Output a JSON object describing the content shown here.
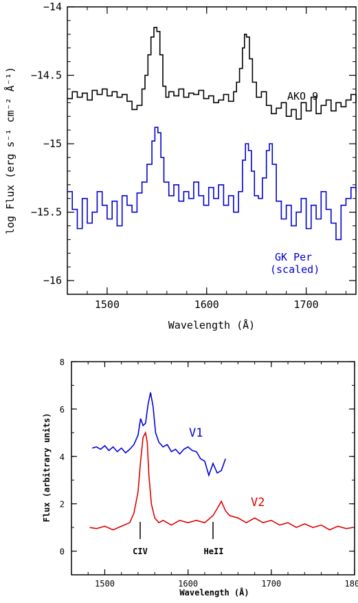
{
  "chart_data": [
    {
      "type": "line",
      "xlabel": "Wavelength (Å)",
      "ylabel": "log Flux (erg s⁻¹ cm⁻² Å⁻¹)",
      "xlim": [
        1460,
        1750
      ],
      "ylim": [
        -16.1,
        -14
      ],
      "xticks": [
        1500,
        1600,
        1700
      ],
      "yticks": [
        -14,
        -14.5,
        -15,
        -15.5,
        -16
      ],
      "tick_labels_x": [
        "1500",
        "1600",
        "1700"
      ],
      "tick_labels_y": [
        "−14",
        "−14.5",
        "−15",
        "−15.5",
        "−16"
      ],
      "grid": false,
      "series": [
        {
          "name": "AKO 9",
          "color": "#000000",
          "x": [
            1460,
            1465,
            1470,
            1475,
            1480,
            1485,
            1490,
            1495,
            1500,
            1505,
            1510,
            1515,
            1520,
            1525,
            1530,
            1535,
            1538,
            1541,
            1544,
            1547,
            1550,
            1553,
            1556,
            1559,
            1562,
            1567,
            1572,
            1577,
            1582,
            1587,
            1592,
            1597,
            1602,
            1607,
            1612,
            1617,
            1622,
            1627,
            1630,
            1633,
            1636,
            1638,
            1640,
            1643,
            1646,
            1650,
            1655,
            1660,
            1665,
            1670,
            1675,
            1680,
            1685,
            1690,
            1695,
            1700,
            1705,
            1710,
            1715,
            1720,
            1725,
            1730,
            1735,
            1740,
            1745,
            1750
          ],
          "values": [
            -14.67,
            -14.62,
            -14.66,
            -14.63,
            -14.68,
            -14.61,
            -14.64,
            -14.6,
            -14.65,
            -14.62,
            -14.66,
            -14.64,
            -14.69,
            -14.75,
            -14.72,
            -14.6,
            -14.5,
            -14.35,
            -14.22,
            -14.15,
            -14.18,
            -14.35,
            -14.58,
            -14.66,
            -14.62,
            -14.65,
            -14.6,
            -14.66,
            -14.63,
            -14.64,
            -14.61,
            -14.67,
            -14.65,
            -14.7,
            -14.68,
            -14.64,
            -14.69,
            -14.62,
            -14.55,
            -14.45,
            -14.3,
            -14.2,
            -14.22,
            -14.38,
            -14.55,
            -14.66,
            -14.62,
            -14.72,
            -14.78,
            -14.74,
            -14.7,
            -14.8,
            -14.75,
            -14.82,
            -14.7,
            -14.76,
            -14.66,
            -14.78,
            -14.72,
            -14.68,
            -14.76,
            -14.7,
            -14.73,
            -14.68,
            -14.64,
            -14.7
          ]
        },
        {
          "name": "GK Per (scaled)",
          "color": "#0000cc",
          "x": [
            1460,
            1465,
            1470,
            1475,
            1480,
            1485,
            1490,
            1495,
            1500,
            1505,
            1510,
            1515,
            1520,
            1525,
            1530,
            1535,
            1540,
            1545,
            1548,
            1551,
            1554,
            1557,
            1562,
            1567,
            1572,
            1577,
            1582,
            1587,
            1592,
            1597,
            1602,
            1607,
            1612,
            1617,
            1622,
            1627,
            1632,
            1636,
            1639,
            1642,
            1645,
            1648,
            1652,
            1656,
            1660,
            1663,
            1666,
            1670,
            1675,
            1680,
            1685,
            1690,
            1695,
            1700,
            1705,
            1710,
            1715,
            1720,
            1725,
            1730,
            1735,
            1740,
            1745,
            1750
          ],
          "values": [
            -15.35,
            -15.48,
            -15.62,
            -15.4,
            -15.58,
            -15.5,
            -15.35,
            -15.45,
            -15.55,
            -15.42,
            -15.6,
            -15.38,
            -15.45,
            -15.5,
            -15.36,
            -15.28,
            -15.15,
            -14.98,
            -14.88,
            -14.92,
            -15.1,
            -15.28,
            -15.38,
            -15.3,
            -15.42,
            -15.35,
            -15.4,
            -15.28,
            -15.38,
            -15.45,
            -15.32,
            -15.4,
            -15.3,
            -15.45,
            -15.38,
            -15.5,
            -15.35,
            -15.12,
            -15.0,
            -15.05,
            -15.2,
            -15.38,
            -15.4,
            -15.25,
            -15.05,
            -15.0,
            -15.15,
            -15.42,
            -15.55,
            -15.45,
            -15.6,
            -15.5,
            -15.4,
            -15.62,
            -15.45,
            -15.55,
            -15.35,
            -15.48,
            -15.58,
            -15.7,
            -15.45,
            -15.4,
            -15.32,
            -15.35
          ]
        }
      ],
      "annotations": [
        {
          "text": "AKO 9",
          "x": 1695,
          "y": -14.55,
          "color": "#000000"
        },
        {
          "text": "GK Per",
          "x": 1690,
          "y": -15.8,
          "color": "#0000cc"
        },
        {
          "text": "(scaled)",
          "x": 1690,
          "y": -15.9,
          "color": "#0000cc"
        }
      ]
    },
    {
      "type": "line",
      "xlabel": "Wavelength (Å)",
      "ylabel": "Flux (arbitrary units)",
      "xlim": [
        1460,
        1800
      ],
      "ylim": [
        -1,
        8
      ],
      "xticks": [
        1500,
        1600,
        1700,
        1800
      ],
      "yticks": [
        0,
        2,
        4,
        6,
        8
      ],
      "tick_labels_x": [
        "1500",
        "1600",
        "1700",
        "1800"
      ],
      "tick_labels_y": [
        "0",
        "2",
        "4",
        "6",
        "8"
      ],
      "grid": false,
      "series": [
        {
          "name": "V1",
          "color": "#0000dd",
          "x": [
            1485,
            1490,
            1495,
            1500,
            1505,
            1510,
            1515,
            1520,
            1525,
            1530,
            1535,
            1540,
            1543,
            1546,
            1549,
            1552,
            1555,
            1558,
            1561,
            1565,
            1570,
            1575,
            1580,
            1585,
            1590,
            1595,
            1600,
            1605,
            1610,
            1615,
            1620,
            1625,
            1630,
            1635,
            1640,
            1645
          ],
          "values": [
            4.35,
            4.4,
            4.3,
            4.45,
            4.25,
            4.4,
            4.2,
            4.35,
            4.15,
            4.3,
            4.5,
            4.9,
            5.6,
            5.3,
            5.4,
            6.2,
            6.7,
            6.1,
            5.0,
            4.6,
            4.4,
            4.5,
            4.2,
            4.3,
            4.1,
            4.3,
            4.4,
            4.25,
            4.2,
            3.9,
            3.8,
            3.2,
            3.7,
            3.3,
            3.4,
            3.9
          ]
        },
        {
          "name": "V2",
          "color": "#dd0000",
          "x": [
            1482,
            1490,
            1500,
            1510,
            1520,
            1530,
            1535,
            1540,
            1543,
            1546,
            1549,
            1551,
            1553,
            1556,
            1560,
            1565,
            1570,
            1580,
            1590,
            1600,
            1610,
            1620,
            1630,
            1635,
            1640,
            1645,
            1650,
            1660,
            1670,
            1680,
            1690,
            1700,
            1710,
            1720,
            1730,
            1740,
            1750,
            1760,
            1770,
            1780,
            1790,
            1798
          ],
          "values": [
            1.0,
            0.95,
            1.05,
            0.9,
            1.05,
            1.2,
            1.6,
            2.5,
            3.8,
            4.8,
            5.0,
            4.6,
            3.2,
            2.0,
            1.4,
            1.2,
            1.3,
            1.1,
            1.3,
            1.2,
            1.3,
            1.2,
            1.5,
            1.8,
            2.1,
            1.7,
            1.5,
            1.4,
            1.2,
            1.4,
            1.2,
            1.3,
            1.1,
            1.2,
            1.0,
            1.15,
            1.0,
            1.1,
            0.9,
            1.05,
            0.95,
            1.0
          ]
        }
      ],
      "annotations": [
        {
          "text": "V1",
          "x": 1608,
          "y": 5.05,
          "color": "#0000dd"
        },
        {
          "text": "V2",
          "x": 1718,
          "y": 1.8,
          "color": "#dd0000"
        },
        {
          "text": "CIV",
          "x": 1550,
          "y": -0.35,
          "color": "#000000"
        },
        {
          "text": "HeII",
          "x": 1640,
          "y": -0.35,
          "color": "#000000"
        }
      ]
    }
  ]
}
